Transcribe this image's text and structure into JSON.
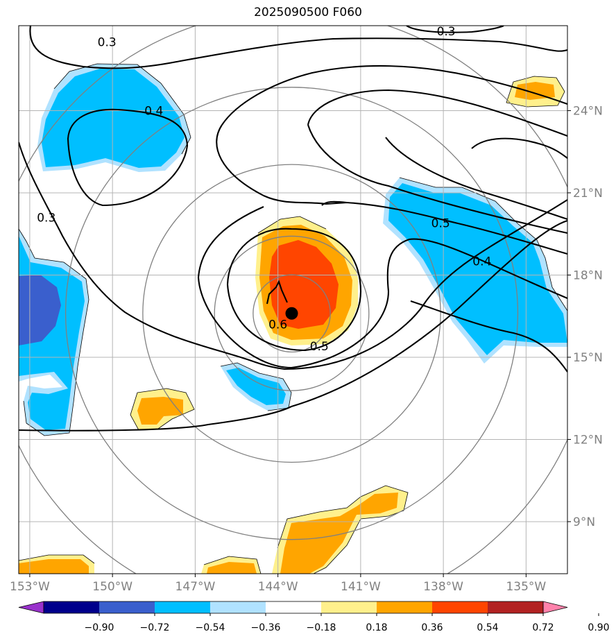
{
  "title": "2025090500 F060",
  "map": {
    "lon_min": -153.4,
    "lon_max": -133.5,
    "lat_min": 7.1,
    "lat_max": 27.1,
    "lon_ticks": [
      {
        "value": -153,
        "label": "153°W"
      },
      {
        "value": -150,
        "label": "150°W"
      },
      {
        "value": -147,
        "label": "147°W"
      },
      {
        "value": -144,
        "label": "144°W"
      },
      {
        "value": -141,
        "label": "141°W"
      },
      {
        "value": -138,
        "label": "138°W"
      },
      {
        "value": -135,
        "label": "135°W"
      }
    ],
    "lat_ticks": [
      {
        "value": 24,
        "label": "24°N"
      },
      {
        "value": 21,
        "label": "21°N"
      },
      {
        "value": 18,
        "label": "18°N"
      },
      {
        "value": 15,
        "label": "15°N"
      },
      {
        "value": 12,
        "label": "12°N"
      },
      {
        "value": 9,
        "label": "9°N"
      }
    ],
    "grid": true,
    "storm_center": {
      "lon": -143.5,
      "lat": 16.6
    },
    "range_rings_deg": [
      1.4,
      2.8,
      5.4,
      8.2,
      11.0
    ]
  },
  "contour_labels": [
    {
      "text": "0.3",
      "lon": -150.2,
      "lat": 26.5
    },
    {
      "text": "0.3",
      "lon": -137.9,
      "lat": 26.9
    },
    {
      "text": "0.4",
      "lon": -148.5,
      "lat": 24.0
    },
    {
      "text": "0.3",
      "lon": -152.4,
      "lat": 20.1
    },
    {
      "text": "0.5",
      "lon": -138.1,
      "lat": 19.9
    },
    {
      "text": "0.4",
      "lon": -136.6,
      "lat": 18.5
    },
    {
      "text": "0.6",
      "lon": -144.0,
      "lat": 16.2
    },
    {
      "text": "0.5",
      "lon": -142.5,
      "lat": 15.4
    }
  ],
  "colorbar": {
    "ticks": [
      "−0.90",
      "−0.72",
      "−0.54",
      "−0.36",
      "−0.18",
      "0.18",
      "0.36",
      "0.54",
      "0.72",
      "0.90"
    ],
    "colors": [
      "#9932cc",
      "#00008b",
      "#3a5fcd",
      "#00bfff",
      "#b0e2ff",
      "#ffffff",
      "#fff08c",
      "#ffa500",
      "#ff4500",
      "#b22222",
      "#ff82ab"
    ]
  },
  "styles": {
    "contour_color": "#000000",
    "ring_color": "#808080",
    "grid_color": "#b4b4b4",
    "tick_label_color": "#808080"
  }
}
